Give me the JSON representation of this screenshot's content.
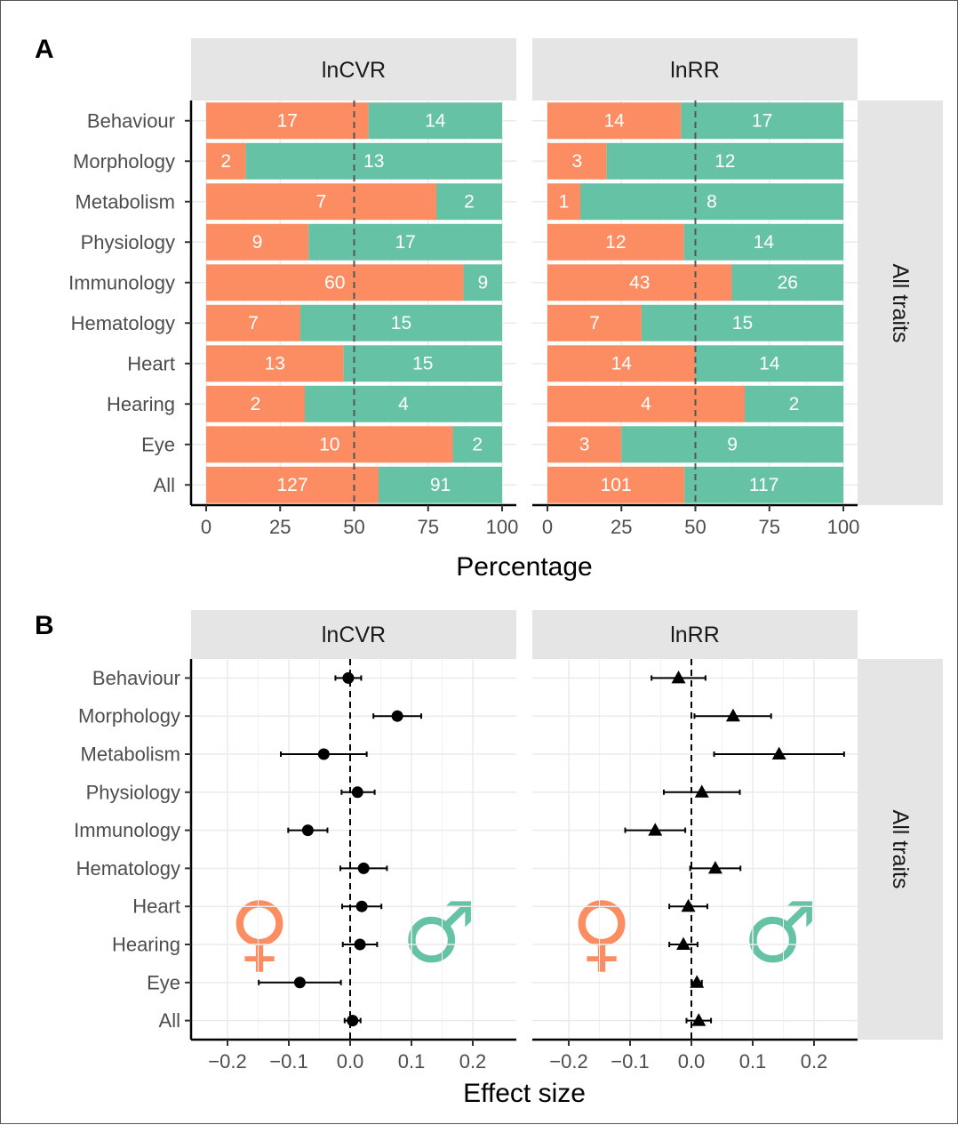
{
  "figure": {
    "panel_a_letter": "A",
    "panel_b_letter": "B",
    "strip_all_traits": "All traits",
    "female_symbol": "♀",
    "male_symbol": "♂",
    "colors": {
      "female": "#fc8d62",
      "male": "#66c2a5",
      "strip": "#e5e5e5",
      "grid": "#ebebeb"
    }
  },
  "chart_data": [
    {
      "type": "bar",
      "stacked": true,
      "orientation": "horizontal",
      "categories": [
        "Behaviour",
        "Morphology",
        "Metabolism",
        "Physiology",
        "Immunology",
        "Hematology",
        "Heart",
        "Hearing",
        "Eye",
        "All"
      ],
      "facets": [
        {
          "name": "lnCVR",
          "series": [
            {
              "values": [
                17,
                2,
                7,
                9,
                60,
                7,
                13,
                2,
                10,
                127
              ],
              "color": "#fc8d62"
            },
            {
              "values": [
                14,
                13,
                2,
                17,
                9,
                15,
                15,
                4,
                2,
                91
              ],
              "color": "#66c2a5"
            }
          ]
        },
        {
          "name": "lnRR",
          "series": [
            {
              "values": [
                14,
                3,
                1,
                12,
                43,
                7,
                14,
                4,
                3,
                101
              ],
              "color": "#fc8d62"
            },
            {
              "values": [
                17,
                12,
                8,
                14,
                26,
                15,
                14,
                2,
                9,
                117
              ],
              "color": "#66c2a5"
            }
          ]
        }
      ],
      "xlabel": "Percentage",
      "xlim": [
        0,
        100
      ],
      "xticks": [
        "0",
        "25",
        "50",
        "75",
        "100"
      ],
      "reference_line": 50,
      "grid": true
    },
    {
      "type": "scatter",
      "orientation": "horizontal",
      "categories": [
        "Behaviour",
        "Morphology",
        "Metabolism",
        "Physiology",
        "Immunology",
        "Hematology",
        "Heart",
        "Hearing",
        "Eye",
        "All"
      ],
      "facets": [
        {
          "name": "lnCVR",
          "marker": "circle",
          "estimates": [
            -0.003,
            0.077,
            -0.043,
            0.012,
            -0.069,
            0.022,
            0.019,
            0.016,
            -0.082,
            0.004
          ],
          "lower": [
            -0.024,
            0.038,
            -0.113,
            -0.014,
            -0.101,
            -0.016,
            -0.013,
            -0.012,
            -0.149,
            -0.009
          ],
          "upper": [
            0.018,
            0.116,
            0.027,
            0.04,
            -0.037,
            0.06,
            0.051,
            0.044,
            -0.015,
            0.017
          ]
        },
        {
          "name": "lnRR",
          "marker": "triangle",
          "estimates": [
            -0.021,
            0.068,
            0.143,
            0.017,
            -0.059,
            0.039,
            -0.005,
            -0.013,
            0.009,
            0.012
          ],
          "lower": [
            -0.065,
            0.005,
            0.037,
            -0.045,
            -0.108,
            -0.002,
            -0.036,
            -0.036,
            0.001,
            -0.008
          ],
          "upper": [
            0.023,
            0.13,
            0.249,
            0.079,
            -0.01,
            0.08,
            0.026,
            0.01,
            0.017,
            0.032
          ]
        }
      ],
      "xlabel": "Effect size",
      "xlim": [
        -0.27,
        0.27
      ],
      "xticks": [
        "−0.2",
        "−0.1",
        "0.0",
        "0.1",
        "0.2"
      ],
      "xtick_values": [
        -0.2,
        -0.1,
        0,
        0.1,
        0.2
      ],
      "reference_line": 0,
      "grid": true
    }
  ]
}
